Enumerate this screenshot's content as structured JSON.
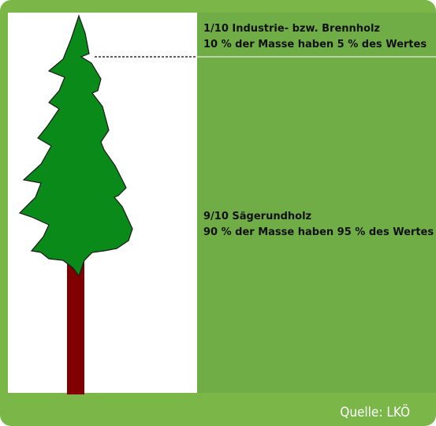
{
  "panels": [
    {
      "line1": "1/10 Industrie- bzw. Brennholz",
      "line2": "10 % der Masse haben 5 % des Wertes"
    },
    {
      "line1": "9/10 Sägerundholz",
      "line2": "90 % der Masse haben 95 % des Wertes"
    }
  ],
  "source": "Quelle: LKÖ"
}
